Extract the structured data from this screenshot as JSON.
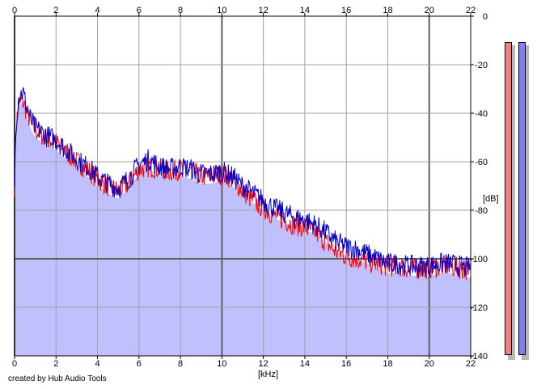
{
  "chart_data": {
    "type": "area",
    "xlabel": "[kHz]",
    "ylabel": "[dB]",
    "xlim": [
      0,
      22
    ],
    "ylim": [
      -140,
      0
    ],
    "x_ticks": [
      0,
      2,
      4,
      6,
      8,
      10,
      12,
      14,
      16,
      18,
      20,
      22
    ],
    "y_ticks": [
      0,
      -20,
      -40,
      -60,
      -80,
      -100,
      -120,
      -140
    ],
    "grid": true,
    "fill_color": "#c0c0ff",
    "series": [
      {
        "color": "#ff0000",
        "x": [
          0,
          0.05,
          0.2,
          0.4,
          0.6,
          0.8,
          1.0,
          1.5,
          2.0,
          2.5,
          3.0,
          3.5,
          4.0,
          4.5,
          5.0,
          5.5,
          6.0,
          6.5,
          7.0,
          7.5,
          8.0,
          8.5,
          9.0,
          9.5,
          10.0,
          10.5,
          11.0,
          11.5,
          12.0,
          12.5,
          13.0,
          13.5,
          14.0,
          14.5,
          15.0,
          15.5,
          16.0,
          16.5,
          17.0,
          17.5,
          18.0,
          18.5,
          19.0,
          19.5,
          20.0,
          20.5,
          21.0,
          21.5,
          22.0
        ],
        "values": [
          -70,
          -48,
          -36,
          -35,
          -40,
          -44,
          -47,
          -50,
          -52,
          -56,
          -60,
          -63,
          -67,
          -70,
          -72,
          -69,
          -63,
          -62,
          -63,
          -64,
          -63,
          -64,
          -66,
          -66,
          -65,
          -67,
          -72,
          -76,
          -79,
          -82,
          -84,
          -86,
          -87,
          -89,
          -93,
          -97,
          -99,
          -100,
          -101,
          -102,
          -103,
          -103,
          -104,
          -104,
          -104,
          -103,
          -103,
          -104,
          -105
        ]
      },
      {
        "color": "#0000cc",
        "x": [
          0,
          0.05,
          0.2,
          0.4,
          0.6,
          0.8,
          1.0,
          1.5,
          2.0,
          2.5,
          3.0,
          3.5,
          4.0,
          4.5,
          5.0,
          5.5,
          6.0,
          6.5,
          7.0,
          7.5,
          8.0,
          8.5,
          9.0,
          9.5,
          10.0,
          10.5,
          11.0,
          11.5,
          12.0,
          12.5,
          13.0,
          13.5,
          14.0,
          14.5,
          15.0,
          15.5,
          16.0,
          16.5,
          17.0,
          17.5,
          18.0,
          18.5,
          19.0,
          19.5,
          20.0,
          20.5,
          21.0,
          21.5,
          22.0
        ],
        "values": [
          -72,
          -46,
          -33,
          -31,
          -38,
          -43,
          -46,
          -49,
          -51,
          -55,
          -59,
          -62,
          -66,
          -69,
          -71,
          -67,
          -61,
          -59,
          -62,
          -63,
          -62,
          -63,
          -65,
          -65,
          -64,
          -66,
          -70,
          -73,
          -76,
          -79,
          -81,
          -83,
          -84,
          -86,
          -89,
          -93,
          -95,
          -96,
          -98,
          -100,
          -102,
          -102,
          -103,
          -103,
          -103,
          -102,
          -102,
          -103,
          -104
        ]
      }
    ]
  },
  "footer": {
    "credit": "created by Hub Audio Tools"
  },
  "meters": [
    {
      "color": "#f08080"
    },
    {
      "color": "#8080f0"
    }
  ]
}
